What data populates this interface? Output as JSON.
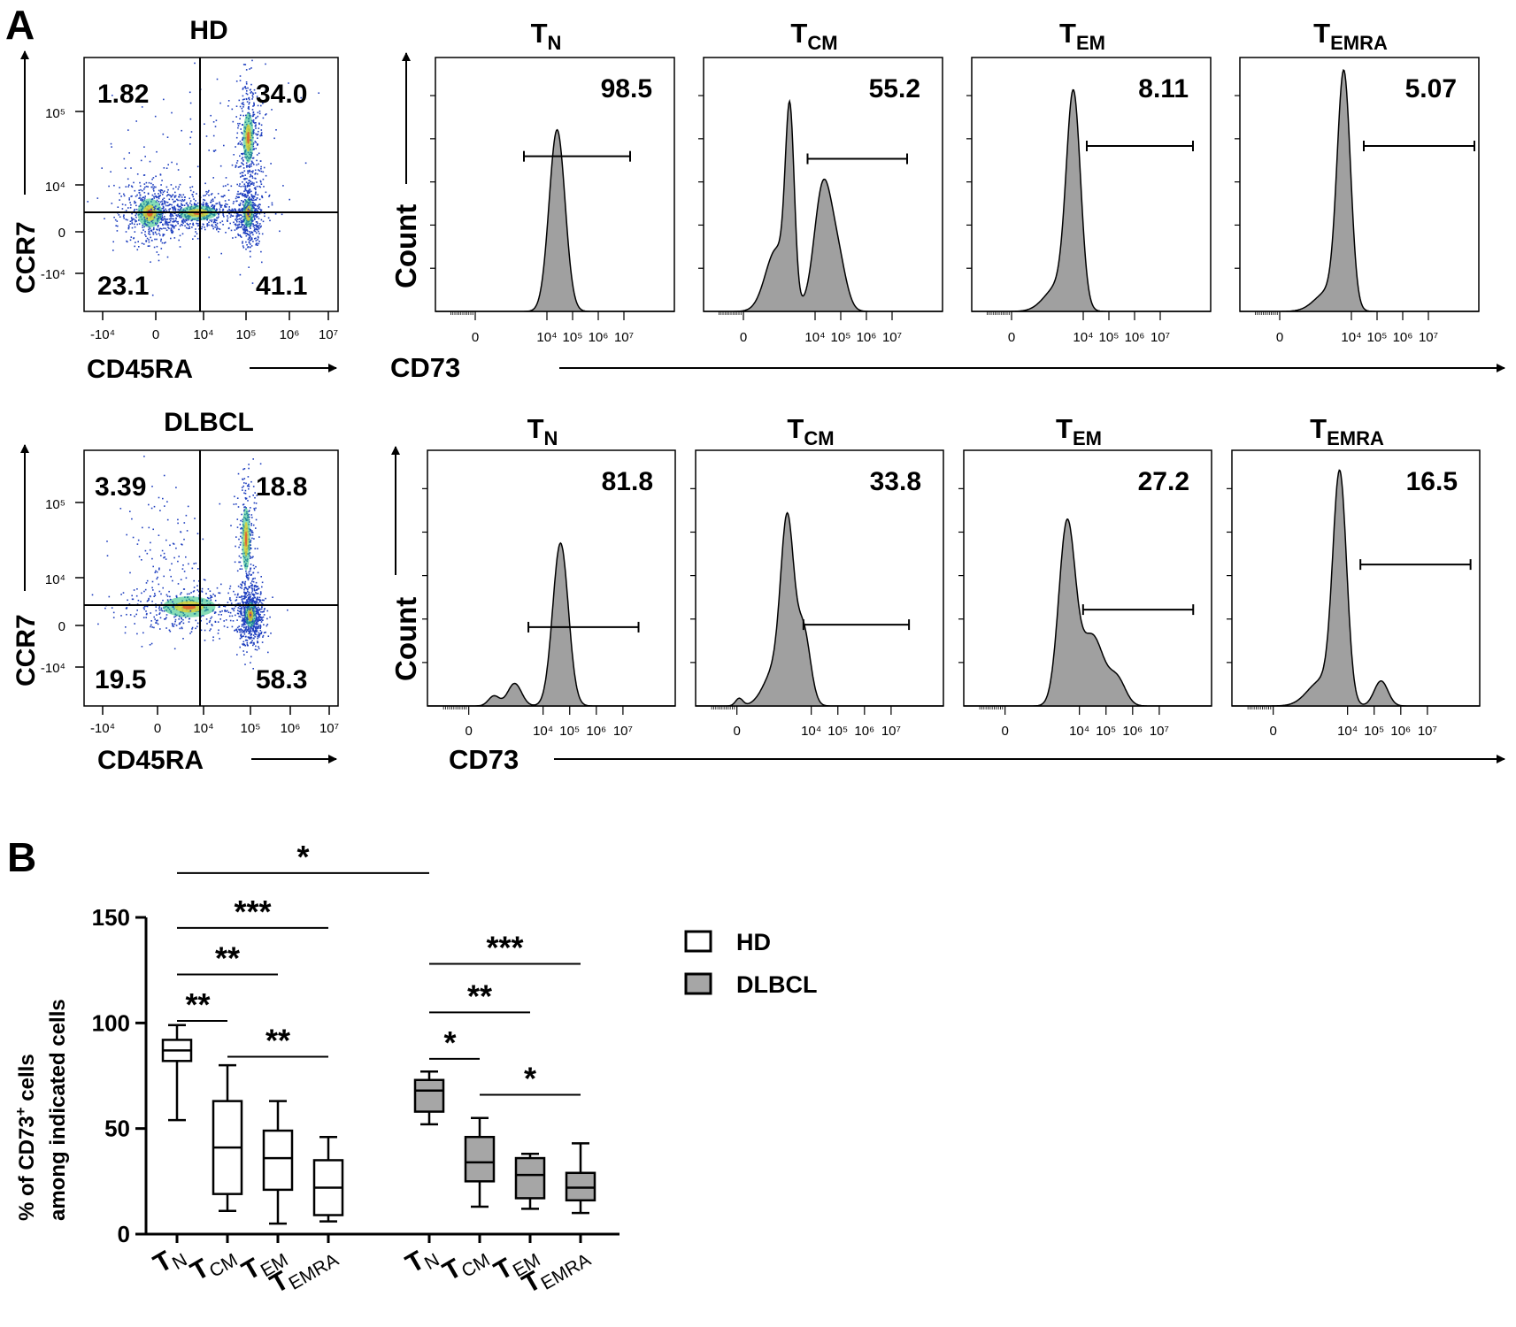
{
  "chart_data": [
    {
      "type": "scatter",
      "id": "dot_hd",
      "panel_label": "A",
      "title": "HD",
      "xlabel": "CD45RA",
      "ylabel": "CCR7",
      "x_ticks": [
        "-10⁴",
        "0",
        "10⁴",
        "10⁵",
        "10⁶",
        "10⁷"
      ],
      "y_ticks": [
        "10⁵",
        "10⁴",
        "0",
        "-10⁴"
      ],
      "quadrants": {
        "upper_left": "1.82",
        "upper_right": "34.0",
        "lower_left": "23.1",
        "lower_right": "41.1"
      },
      "clusters": [
        {
          "x": 0.3,
          "y": 0.2,
          "n": 460,
          "sx": 0.35,
          "sy": 0.35
        },
        {
          "x": 2.55,
          "y": 0.2,
          "n": 480,
          "sx": 0.15,
          "sy": 0.35
        },
        {
          "x": 2.55,
          "y": 1.65,
          "n": 360,
          "sx": 0.15,
          "sy": 0.6
        },
        {
          "x": 1.4,
          "y": 0.2,
          "n": 520,
          "sx": 0.55,
          "sy": 0.18
        },
        {
          "x": 1.4,
          "y": 1.4,
          "n": 120,
          "sx": 1.2,
          "sy": 0.9
        }
      ]
    },
    {
      "type": "scatter",
      "id": "dot_dlbcl",
      "title": "DLBCL",
      "xlabel": "CD45RA",
      "ylabel": "CCR7",
      "x_ticks": [
        "-10⁴",
        "0",
        "10⁴",
        "10⁵",
        "10⁶",
        "10⁷"
      ],
      "y_ticks": [
        "10⁵",
        "10⁴",
        "0",
        "-10⁴"
      ],
      "quadrants": {
        "upper_left": "3.39",
        "upper_right": "18.8",
        "lower_left": "19.5",
        "lower_right": "58.3"
      },
      "clusters": [
        {
          "x": 2.6,
          "y": 0.05,
          "n": 620,
          "sx": 0.15,
          "sy": 0.3
        },
        {
          "x": 2.5,
          "y": 1.5,
          "n": 260,
          "sx": 0.12,
          "sy": 0.75
        },
        {
          "x": 1.2,
          "y": 0.2,
          "n": 380,
          "sx": 0.75,
          "sy": 0.25
        },
        {
          "x": 0.6,
          "y": 1.2,
          "n": 110,
          "sx": 0.45,
          "sy": 0.7
        }
      ]
    },
    {
      "type": "area",
      "id": "hist_hd",
      "row": "HD",
      "ylabel": "Count",
      "xlabel": "CD73",
      "x_ticks": [
        "0",
        "10⁴",
        "10⁵",
        "10⁶",
        "10⁷"
      ],
      "panels": [
        {
          "title": "T",
          "subscript": "N",
          "value": "98.5",
          "gate": [
            1.1,
            3.5
          ],
          "peaks": [
            {
              "x": 1.85,
              "h": 0.73,
              "w": 0.18
            }
          ]
        },
        {
          "title": "T",
          "subscript": "CM",
          "value": "55.2",
          "gate": [
            1.45,
            3.7
          ],
          "peaks": [
            {
              "x": 1.05,
              "h": 0.72,
              "w": 0.1
            },
            {
              "x": 0.75,
              "h": 0.25,
              "w": 0.25
            },
            {
              "x": 1.8,
              "h": 0.5,
              "w": 0.2
            },
            {
              "x": 2.15,
              "h": 0.18,
              "w": 0.18
            }
          ]
        },
        {
          "title": "T",
          "subscript": "EM",
          "value": "8.11",
          "gate": [
            1.7,
            4.1
          ],
          "peaks": [
            {
              "x": 1.4,
              "h": 0.84,
              "w": 0.16
            },
            {
              "x": 1.05,
              "h": 0.1,
              "w": 0.3
            }
          ]
        },
        {
          "title": "T",
          "subscript": "EMRA",
          "value": "5.07",
          "gate": [
            1.9,
            4.4
          ],
          "peaks": [
            {
              "x": 1.45,
              "h": 0.93,
              "w": 0.15
            },
            {
              "x": 1.1,
              "h": 0.08,
              "w": 0.3
            }
          ]
        }
      ]
    },
    {
      "type": "area",
      "id": "hist_dlbcl",
      "row": "DLBCL",
      "ylabel": "Count",
      "xlabel": "CD73",
      "x_ticks": [
        "0",
        "10⁴",
        "10⁵",
        "10⁶",
        "10⁷"
      ],
      "panels": [
        {
          "title": "T",
          "subscript": "N",
          "value": "81.8",
          "gate": [
            1.3,
            3.7
          ],
          "peaks": [
            {
              "x": 2.0,
              "h": 0.65,
              "w": 0.17
            },
            {
              "x": 1.0,
              "h": 0.09,
              "w": 0.15
            },
            {
              "x": 0.55,
              "h": 0.04,
              "w": 0.12
            }
          ]
        },
        {
          "title": "T",
          "subscript": "CM",
          "value": "33.8",
          "gate": [
            1.45,
            3.75
          ],
          "peaks": [
            {
              "x": 1.1,
              "h": 0.66,
              "w": 0.14
            },
            {
              "x": 1.45,
              "h": 0.3,
              "w": 0.15
            },
            {
              "x": 0.85,
              "h": 0.15,
              "w": 0.25
            },
            {
              "x": 0.05,
              "h": 0.03,
              "w": 0.08
            }
          ]
        },
        {
          "title": "T",
          "subscript": "EM",
          "value": "27.2",
          "gate": [
            1.7,
            4.1
          ],
          "peaks": [
            {
              "x": 1.35,
              "h": 0.72,
              "w": 0.18
            },
            {
              "x": 1.9,
              "h": 0.28,
              "w": 0.25
            },
            {
              "x": 2.45,
              "h": 0.1,
              "w": 0.18
            }
          ]
        },
        {
          "title": "T",
          "subscript": "EMRA",
          "value": "16.5",
          "gate": [
            1.9,
            4.3
          ],
          "peaks": [
            {
              "x": 1.45,
              "h": 0.9,
              "w": 0.15
            },
            {
              "x": 1.05,
              "h": 0.1,
              "w": 0.3
            },
            {
              "x": 2.35,
              "h": 0.1,
              "w": 0.15
            }
          ]
        }
      ]
    },
    {
      "type": "box",
      "id": "boxplot",
      "panel_label": "B",
      "ylabel_line1": "% of CD73",
      "ylabel_sup": "+",
      "ylabel_after": "  cells",
      "ylabel_line2": "among indicated cells",
      "ylim": [
        0,
        150
      ],
      "y_ticks": [
        "0",
        "50",
        "100",
        "150"
      ],
      "categories": [
        {
          "main": "T",
          "sub": "N"
        },
        {
          "main": "T",
          "sub": "CM"
        },
        {
          "main": "T",
          "sub": "EM"
        },
        {
          "main": "T",
          "sub": "EMRA"
        },
        {
          "main": "T",
          "sub": "N"
        },
        {
          "main": "T",
          "sub": "CM"
        },
        {
          "main": "T",
          "sub": "EM"
        },
        {
          "main": "T",
          "sub": "EMRA"
        }
      ],
      "series": [
        {
          "name": "HD",
          "color": "#ffffff",
          "positions": [
            0,
            1,
            2,
            3
          ],
          "boxes": [
            {
              "min": 54,
              "q1": 82,
              "median": 87,
              "q3": 92,
              "max": 99
            },
            {
              "min": 11,
              "q1": 19,
              "median": 41,
              "q3": 63,
              "max": 80
            },
            {
              "min": 5,
              "q1": 21,
              "median": 36,
              "q3": 49,
              "max": 63
            },
            {
              "min": 6,
              "q1": 9,
              "median": 22,
              "q3": 35,
              "max": 46
            }
          ]
        },
        {
          "name": "DLBCL",
          "color": "#a6a6a6",
          "positions": [
            5,
            6,
            7,
            8
          ],
          "boxes": [
            {
              "min": 52,
              "q1": 58,
              "median": 68,
              "q3": 73,
              "max": 77
            },
            {
              "min": 13,
              "q1": 25,
              "median": 34,
              "q3": 46,
              "max": 55
            },
            {
              "min": 12,
              "q1": 17,
              "median": 28,
              "q3": 36,
              "max": 38
            },
            {
              "min": 10,
              "q1": 16,
              "median": 22,
              "q3": 29,
              "max": 43
            }
          ]
        }
      ],
      "significance": [
        {
          "from": 0,
          "to": 5,
          "y": 171,
          "label": "*"
        },
        {
          "from": 0,
          "to": 3,
          "y": 145,
          "label": "***"
        },
        {
          "from": 0,
          "to": 2,
          "y": 123,
          "label": "**"
        },
        {
          "from": 0,
          "to": 1,
          "y": 101,
          "label": "**"
        },
        {
          "from": 1,
          "to": 3,
          "y": 84,
          "label": "**"
        },
        {
          "from": 5,
          "to": 8,
          "y": 128,
          "label": "***"
        },
        {
          "from": 5,
          "to": 7,
          "y": 105,
          "label": "**"
        },
        {
          "from": 5,
          "to": 6,
          "y": 83,
          "label": "*"
        },
        {
          "from": 6,
          "to": 8,
          "y": 66,
          "label": "*"
        }
      ],
      "legend": [
        "HD",
        "DLBCL"
      ]
    }
  ]
}
